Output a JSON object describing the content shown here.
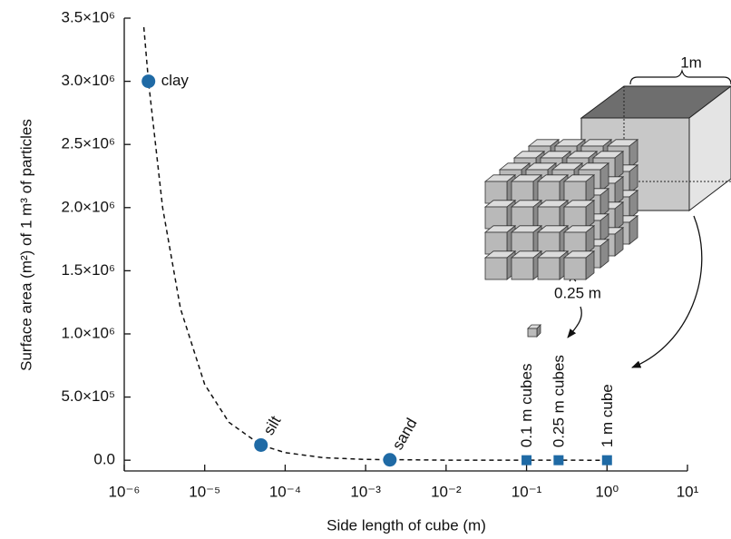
{
  "chart_data": {
    "type": "scatter",
    "x_label": "Side length of cube (m)",
    "y_label": "Surface area (m²) of 1 m³ of particles",
    "xscale": "log",
    "xlim": [
      1e-06,
      10
    ],
    "ylim": [
      -85000,
      3500000
    ],
    "xticks": [
      {
        "value": 1e-06,
        "label": "10⁻⁶"
      },
      {
        "value": 1e-05,
        "label": "10⁻⁵"
      },
      {
        "value": 0.0001,
        "label": "10⁻⁴"
      },
      {
        "value": 0.001,
        "label": "10⁻³"
      },
      {
        "value": 0.01,
        "label": "10⁻²"
      },
      {
        "value": 0.1,
        "label": "10⁻¹"
      },
      {
        "value": 1,
        "label": "10⁰"
      },
      {
        "value": 10,
        "label": "10¹"
      }
    ],
    "yticks": [
      {
        "value": 0,
        "label": "0.0"
      },
      {
        "value": 500000,
        "label": "5.0×10⁵"
      },
      {
        "value": 1000000,
        "label": "1.0×10⁶"
      },
      {
        "value": 1500000,
        "label": "1.5×10⁶"
      },
      {
        "value": 2000000,
        "label": "2.0×10⁶"
      },
      {
        "value": 2500000,
        "label": "2.5×10⁶"
      },
      {
        "value": 3000000,
        "label": "3.0×10⁶"
      },
      {
        "value": {
          "value": 3500000,
          "label": "3.5×10⁶"
        },
        "label": "3.5×10⁶"
      }
    ],
    "curve": {
      "x": [
        1.75e-06,
        2e-06,
        3e-06,
        5e-06,
        1e-05,
        2e-05,
        5e-05,
        0.0001,
        0.0003,
        0.001,
        0.01,
        1
      ],
      "values": [
        3428571,
        3000000,
        2000000,
        1200000,
        600000,
        300000,
        120000,
        60000,
        20000,
        6000,
        600,
        6
      ],
      "color": "#111111"
    },
    "series": [
      {
        "marker": "circle",
        "color": "#1f6aa5",
        "x": [
          2e-06,
          5e-05,
          0.002
        ],
        "values": [
          3000000,
          120000,
          3000
        ],
        "labels": [
          "clay",
          "silt",
          "sand"
        ]
      },
      {
        "marker": "square",
        "color": "#1f6aa5",
        "x": [
          0.1,
          0.25,
          1
        ],
        "values": [
          60,
          24,
          6
        ],
        "labels": [
          "0.1 m cubes",
          "0.25 m cubes",
          "1 m cube"
        ]
      }
    ],
    "annotations": [
      "1m",
      "0.25 m"
    ]
  }
}
